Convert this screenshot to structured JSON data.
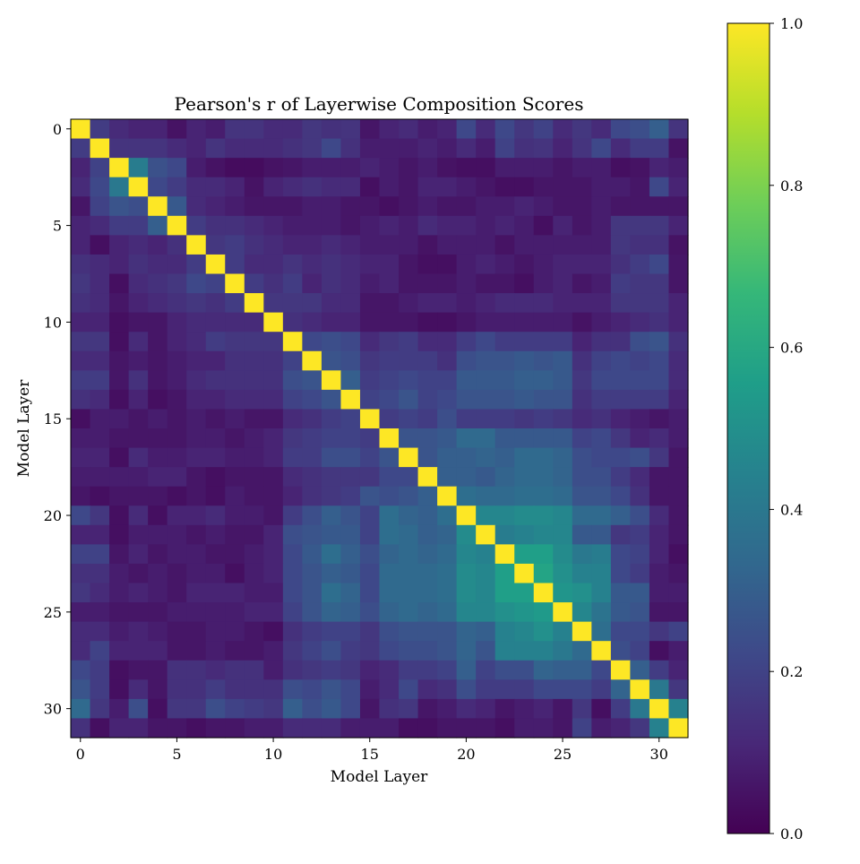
{
  "chart_data": {
    "type": "heatmap",
    "title": "Pearson's r of Layerwise Composition Scores",
    "xlabel": "Model Layer",
    "ylabel": "Model Layer",
    "rows": 32,
    "cols": 32,
    "x_ticks": [
      0,
      5,
      10,
      15,
      20,
      25,
      30
    ],
    "y_ticks": [
      0,
      5,
      10,
      15,
      20,
      25,
      30
    ],
    "colormap": "viridis",
    "colorbar": {
      "range": [
        0.0,
        1.0
      ],
      "ticks": [
        "0.0",
        "0.2",
        "0.4",
        "0.6",
        "0.8",
        "1.0"
      ]
    },
    "colors": {
      "viridis_stops": [
        "#440154",
        "#482878",
        "#3e4989",
        "#31688e",
        "#26828e",
        "#1f9e89",
        "#35b779",
        "#6ece58",
        "#b5de2b",
        "#fde725"
      ]
    },
    "values": [
      [
        1.0,
        0.18,
        0.12,
        0.1,
        0.1,
        0.05,
        0.1,
        0.08,
        0.15,
        0.15,
        0.12,
        0.12,
        0.16,
        0.14,
        0.15,
        0.06,
        0.1,
        0.12,
        0.08,
        0.1,
        0.22,
        0.12,
        0.22,
        0.16,
        0.2,
        0.12,
        0.16,
        0.12,
        0.22,
        0.24,
        0.3,
        0.15
      ],
      [
        0.18,
        1.0,
        0.15,
        0.15,
        0.15,
        0.12,
        0.1,
        0.15,
        0.12,
        0.12,
        0.12,
        0.14,
        0.16,
        0.22,
        0.14,
        0.08,
        0.08,
        0.08,
        0.1,
        0.08,
        0.12,
        0.08,
        0.2,
        0.14,
        0.15,
        0.1,
        0.15,
        0.22,
        0.12,
        0.18,
        0.18,
        0.05
      ],
      [
        0.1,
        0.2,
        1.0,
        0.42,
        0.25,
        0.22,
        0.08,
        0.05,
        0.03,
        0.03,
        0.05,
        0.06,
        0.08,
        0.08,
        0.08,
        0.1,
        0.08,
        0.06,
        0.08,
        0.05,
        0.04,
        0.04,
        0.08,
        0.08,
        0.08,
        0.06,
        0.08,
        0.08,
        0.04,
        0.05,
        0.1,
        0.08
      ],
      [
        0.12,
        0.22,
        0.4,
        1.0,
        0.22,
        0.18,
        0.12,
        0.12,
        0.1,
        0.05,
        0.1,
        0.12,
        0.14,
        0.12,
        0.12,
        0.04,
        0.08,
        0.06,
        0.1,
        0.1,
        0.08,
        0.06,
        0.04,
        0.04,
        0.06,
        0.06,
        0.06,
        0.08,
        0.08,
        0.06,
        0.22,
        0.1
      ],
      [
        0.06,
        0.2,
        0.26,
        0.24,
        1.0,
        0.28,
        0.12,
        0.1,
        0.08,
        0.06,
        0.06,
        0.06,
        0.08,
        0.08,
        0.06,
        0.06,
        0.04,
        0.06,
        0.08,
        0.06,
        0.06,
        0.08,
        0.08,
        0.1,
        0.08,
        0.06,
        0.06,
        0.08,
        0.06,
        0.06,
        0.06,
        0.06
      ],
      [
        0.1,
        0.12,
        0.18,
        0.18,
        0.3,
        1.0,
        0.18,
        0.14,
        0.14,
        0.12,
        0.1,
        0.08,
        0.08,
        0.08,
        0.06,
        0.08,
        0.1,
        0.08,
        0.12,
        0.1,
        0.1,
        0.08,
        0.1,
        0.08,
        0.04,
        0.1,
        0.06,
        0.08,
        0.16,
        0.16,
        0.16,
        0.1
      ],
      [
        0.1,
        0.04,
        0.1,
        0.12,
        0.1,
        0.14,
        1.0,
        0.16,
        0.18,
        0.14,
        0.12,
        0.1,
        0.1,
        0.12,
        0.1,
        0.08,
        0.08,
        0.08,
        0.05,
        0.08,
        0.08,
        0.08,
        0.05,
        0.08,
        0.08,
        0.08,
        0.08,
        0.08,
        0.16,
        0.14,
        0.14,
        0.05
      ],
      [
        0.14,
        0.12,
        0.1,
        0.14,
        0.12,
        0.12,
        0.18,
        1.0,
        0.18,
        0.12,
        0.12,
        0.15,
        0.12,
        0.14,
        0.12,
        0.1,
        0.1,
        0.06,
        0.04,
        0.04,
        0.08,
        0.1,
        0.08,
        0.06,
        0.08,
        0.1,
        0.1,
        0.1,
        0.14,
        0.18,
        0.22,
        0.06
      ],
      [
        0.16,
        0.12,
        0.04,
        0.12,
        0.14,
        0.16,
        0.22,
        0.2,
        1.0,
        0.18,
        0.14,
        0.18,
        0.1,
        0.14,
        0.12,
        0.08,
        0.1,
        0.06,
        0.06,
        0.06,
        0.08,
        0.06,
        0.06,
        0.04,
        0.08,
        0.1,
        0.06,
        0.08,
        0.18,
        0.16,
        0.16,
        0.06
      ],
      [
        0.14,
        0.12,
        0.06,
        0.1,
        0.12,
        0.14,
        0.16,
        0.14,
        0.18,
        1.0,
        0.16,
        0.16,
        0.16,
        0.12,
        0.12,
        0.06,
        0.06,
        0.08,
        0.1,
        0.1,
        0.08,
        0.1,
        0.12,
        0.12,
        0.12,
        0.1,
        0.1,
        0.1,
        0.16,
        0.16,
        0.16,
        0.1
      ],
      [
        0.1,
        0.1,
        0.04,
        0.06,
        0.06,
        0.1,
        0.12,
        0.12,
        0.12,
        0.12,
        1.0,
        0.14,
        0.12,
        0.1,
        0.1,
        0.06,
        0.06,
        0.06,
        0.04,
        0.04,
        0.06,
        0.08,
        0.08,
        0.08,
        0.08,
        0.08,
        0.05,
        0.08,
        0.1,
        0.12,
        0.14,
        0.1
      ],
      [
        0.16,
        0.16,
        0.04,
        0.12,
        0.06,
        0.1,
        0.12,
        0.18,
        0.16,
        0.16,
        0.16,
        1.0,
        0.22,
        0.24,
        0.22,
        0.12,
        0.16,
        0.18,
        0.12,
        0.12,
        0.18,
        0.22,
        0.18,
        0.18,
        0.18,
        0.18,
        0.1,
        0.14,
        0.14,
        0.24,
        0.26,
        0.14
      ],
      [
        0.12,
        0.12,
        0.06,
        0.08,
        0.06,
        0.08,
        0.1,
        0.1,
        0.14,
        0.14,
        0.14,
        0.2,
        1.0,
        0.26,
        0.24,
        0.16,
        0.18,
        0.18,
        0.18,
        0.14,
        0.24,
        0.26,
        0.26,
        0.28,
        0.26,
        0.28,
        0.14,
        0.2,
        0.22,
        0.2,
        0.22,
        0.12
      ],
      [
        0.18,
        0.18,
        0.06,
        0.14,
        0.06,
        0.08,
        0.12,
        0.14,
        0.14,
        0.14,
        0.14,
        0.24,
        0.26,
        1.0,
        0.3,
        0.18,
        0.2,
        0.22,
        0.2,
        0.2,
        0.28,
        0.28,
        0.28,
        0.3,
        0.3,
        0.28,
        0.16,
        0.22,
        0.22,
        0.22,
        0.22,
        0.12
      ],
      [
        0.14,
        0.12,
        0.04,
        0.1,
        0.04,
        0.06,
        0.1,
        0.1,
        0.12,
        0.12,
        0.12,
        0.2,
        0.22,
        0.26,
        1.0,
        0.2,
        0.22,
        0.26,
        0.2,
        0.22,
        0.26,
        0.26,
        0.26,
        0.28,
        0.26,
        0.26,
        0.14,
        0.18,
        0.18,
        0.18,
        0.18,
        0.1
      ],
      [
        0.04,
        0.08,
        0.08,
        0.06,
        0.08,
        0.06,
        0.08,
        0.06,
        0.08,
        0.06,
        0.06,
        0.12,
        0.14,
        0.18,
        0.2,
        1.0,
        0.18,
        0.2,
        0.18,
        0.24,
        0.18,
        0.18,
        0.18,
        0.16,
        0.18,
        0.16,
        0.12,
        0.14,
        0.1,
        0.08,
        0.06,
        0.08
      ],
      [
        0.08,
        0.08,
        0.06,
        0.06,
        0.06,
        0.06,
        0.08,
        0.08,
        0.06,
        0.08,
        0.1,
        0.16,
        0.18,
        0.2,
        0.2,
        0.18,
        1.0,
        0.26,
        0.26,
        0.28,
        0.34,
        0.34,
        0.28,
        0.28,
        0.28,
        0.28,
        0.2,
        0.22,
        0.16,
        0.1,
        0.12,
        0.08
      ],
      [
        0.1,
        0.1,
        0.04,
        0.12,
        0.08,
        0.08,
        0.1,
        0.1,
        0.08,
        0.08,
        0.1,
        0.18,
        0.18,
        0.24,
        0.24,
        0.2,
        0.26,
        1.0,
        0.26,
        0.3,
        0.3,
        0.32,
        0.3,
        0.34,
        0.34,
        0.32,
        0.24,
        0.22,
        0.22,
        0.24,
        0.16,
        0.06
      ],
      [
        0.08,
        0.08,
        0.08,
        0.08,
        0.1,
        0.1,
        0.06,
        0.04,
        0.06,
        0.06,
        0.06,
        0.12,
        0.14,
        0.16,
        0.16,
        0.16,
        0.22,
        0.22,
        1.0,
        0.3,
        0.3,
        0.28,
        0.32,
        0.34,
        0.34,
        0.32,
        0.24,
        0.24,
        0.18,
        0.12,
        0.06,
        0.06
      ],
      [
        0.06,
        0.04,
        0.06,
        0.06,
        0.06,
        0.04,
        0.06,
        0.04,
        0.08,
        0.06,
        0.06,
        0.1,
        0.14,
        0.16,
        0.18,
        0.26,
        0.24,
        0.26,
        0.3,
        1.0,
        0.36,
        0.34,
        0.34,
        0.36,
        0.36,
        0.34,
        0.26,
        0.26,
        0.22,
        0.14,
        0.06,
        0.06
      ],
      [
        0.22,
        0.16,
        0.04,
        0.12,
        0.04,
        0.1,
        0.1,
        0.12,
        0.08,
        0.08,
        0.06,
        0.18,
        0.24,
        0.3,
        0.26,
        0.2,
        0.36,
        0.32,
        0.3,
        0.36,
        1.0,
        0.46,
        0.46,
        0.48,
        0.48,
        0.46,
        0.34,
        0.34,
        0.3,
        0.24,
        0.12,
        0.06
      ],
      [
        0.1,
        0.1,
        0.04,
        0.08,
        0.08,
        0.08,
        0.06,
        0.08,
        0.06,
        0.06,
        0.1,
        0.24,
        0.26,
        0.28,
        0.28,
        0.2,
        0.36,
        0.34,
        0.3,
        0.32,
        0.48,
        1.0,
        0.42,
        0.44,
        0.46,
        0.46,
        0.28,
        0.28,
        0.16,
        0.18,
        0.1,
        0.06
      ],
      [
        0.2,
        0.2,
        0.06,
        0.1,
        0.06,
        0.08,
        0.08,
        0.06,
        0.06,
        0.08,
        0.1,
        0.22,
        0.28,
        0.36,
        0.3,
        0.24,
        0.32,
        0.34,
        0.32,
        0.34,
        0.46,
        0.44,
        1.0,
        0.56,
        0.56,
        0.48,
        0.4,
        0.42,
        0.22,
        0.2,
        0.1,
        0.04
      ],
      [
        0.14,
        0.14,
        0.08,
        0.06,
        0.08,
        0.06,
        0.08,
        0.08,
        0.04,
        0.08,
        0.1,
        0.22,
        0.26,
        0.3,
        0.28,
        0.22,
        0.34,
        0.34,
        0.34,
        0.36,
        0.48,
        0.46,
        0.56,
        1.0,
        0.58,
        0.5,
        0.44,
        0.44,
        0.22,
        0.18,
        0.08,
        0.06
      ],
      [
        0.16,
        0.12,
        0.08,
        0.1,
        0.08,
        0.06,
        0.1,
        0.1,
        0.1,
        0.08,
        0.08,
        0.22,
        0.26,
        0.36,
        0.32,
        0.22,
        0.34,
        0.34,
        0.34,
        0.36,
        0.48,
        0.46,
        0.56,
        0.56,
        1.0,
        0.52,
        0.5,
        0.44,
        0.28,
        0.28,
        0.08,
        0.08
      ],
      [
        0.08,
        0.08,
        0.06,
        0.06,
        0.06,
        0.08,
        0.08,
        0.08,
        0.08,
        0.1,
        0.1,
        0.2,
        0.26,
        0.32,
        0.3,
        0.24,
        0.32,
        0.34,
        0.32,
        0.34,
        0.46,
        0.46,
        0.5,
        0.52,
        0.54,
        1.0,
        0.46,
        0.38,
        0.28,
        0.26,
        0.06,
        0.06
      ],
      [
        0.12,
        0.12,
        0.08,
        0.1,
        0.08,
        0.06,
        0.06,
        0.08,
        0.08,
        0.06,
        0.04,
        0.14,
        0.18,
        0.2,
        0.2,
        0.16,
        0.24,
        0.26,
        0.26,
        0.26,
        0.32,
        0.3,
        0.44,
        0.46,
        0.5,
        0.44,
        1.0,
        0.36,
        0.22,
        0.22,
        0.16,
        0.2
      ],
      [
        0.12,
        0.2,
        0.1,
        0.1,
        0.1,
        0.06,
        0.06,
        0.08,
        0.06,
        0.06,
        0.08,
        0.16,
        0.2,
        0.24,
        0.18,
        0.16,
        0.22,
        0.24,
        0.24,
        0.26,
        0.32,
        0.26,
        0.44,
        0.44,
        0.44,
        0.4,
        0.34,
        1.0,
        0.24,
        0.2,
        0.04,
        0.08
      ],
      [
        0.22,
        0.18,
        0.04,
        0.06,
        0.06,
        0.14,
        0.14,
        0.12,
        0.14,
        0.14,
        0.08,
        0.14,
        0.16,
        0.18,
        0.16,
        0.1,
        0.12,
        0.18,
        0.18,
        0.2,
        0.3,
        0.2,
        0.24,
        0.24,
        0.32,
        0.3,
        0.3,
        0.22,
        1.0,
        0.3,
        0.18,
        0.1
      ],
      [
        0.26,
        0.18,
        0.04,
        0.12,
        0.06,
        0.14,
        0.14,
        0.18,
        0.14,
        0.14,
        0.14,
        0.24,
        0.22,
        0.26,
        0.22,
        0.08,
        0.12,
        0.22,
        0.12,
        0.14,
        0.24,
        0.18,
        0.18,
        0.18,
        0.22,
        0.22,
        0.22,
        0.18,
        0.32,
        1.0,
        0.4,
        0.16
      ],
      [
        0.34,
        0.16,
        0.08,
        0.24,
        0.04,
        0.16,
        0.16,
        0.24,
        0.2,
        0.18,
        0.16,
        0.3,
        0.24,
        0.28,
        0.22,
        0.06,
        0.14,
        0.16,
        0.06,
        0.08,
        0.12,
        0.1,
        0.06,
        0.08,
        0.1,
        0.06,
        0.16,
        0.04,
        0.18,
        0.4,
        1.0,
        0.44
      ],
      [
        0.14,
        0.04,
        0.1,
        0.1,
        0.06,
        0.06,
        0.04,
        0.06,
        0.06,
        0.08,
        0.08,
        0.12,
        0.12,
        0.12,
        0.08,
        0.08,
        0.08,
        0.04,
        0.04,
        0.06,
        0.06,
        0.06,
        0.04,
        0.08,
        0.08,
        0.06,
        0.2,
        0.08,
        0.1,
        0.16,
        0.44,
        1.0
      ]
    ]
  }
}
